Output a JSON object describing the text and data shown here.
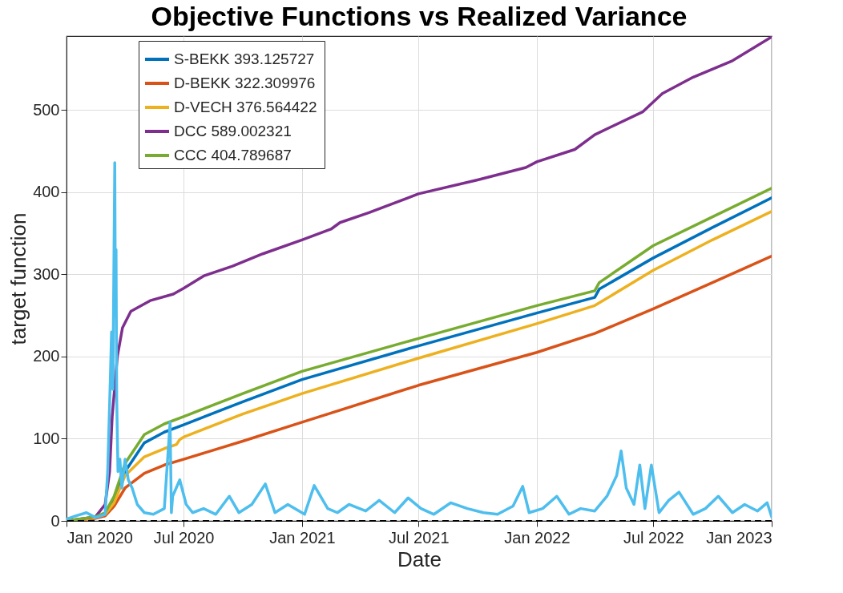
{
  "chart_data": {
    "type": "line",
    "title": "Objective Functions vs Realized Variance",
    "xlabel": "Date",
    "ylabel": "target function",
    "xlim": [
      "2020-01-01",
      "2023-01-01"
    ],
    "xticks": [
      {
        "value": "2020-01-01",
        "label": "Jan 2020"
      },
      {
        "value": "2020-07-01",
        "label": "Jul 2020"
      },
      {
        "value": "2021-01-01",
        "label": "Jan 2021"
      },
      {
        "value": "2021-07-01",
        "label": "Jul 2021"
      },
      {
        "value": "2022-01-01",
        "label": "Jan 2022"
      },
      {
        "value": "2022-07-01",
        "label": "Jul 2022"
      },
      {
        "value": "2023-01-01",
        "label": "Jan 2023"
      }
    ],
    "ylim": [
      0,
      590
    ],
    "yticks": [
      0,
      100,
      200,
      300,
      400,
      500
    ],
    "grid": true,
    "legend": "top left",
    "line_style": "solid",
    "marker": "none",
    "ref_lines": [
      {
        "axis": "y",
        "value": 0,
        "color": "#000000",
        "line_style": "dashed"
      }
    ],
    "series": [
      {
        "name": "S-BEKK 393.125727",
        "color": "#0072bd",
        "x": [
          "2020-01-01",
          "2020-02-15",
          "2020-03-01",
          "2020-03-15",
          "2020-04-01",
          "2020-05-01",
          "2020-06-01",
          "2020-07-01",
          "2020-10-01",
          "2021-01-01",
          "2021-07-01",
          "2022-01-01",
          "2022-04-01",
          "2022-04-08",
          "2022-07-01",
          "2022-10-01",
          "2023-01-01"
        ],
        "values": [
          0,
          4,
          8,
          25,
          60,
          95,
          108,
          117,
          145,
          172,
          213,
          253,
          272,
          282,
          320,
          357,
          393.1
        ]
      },
      {
        "name": "D-BEKK  322.309976",
        "color": "#d95319",
        "x": [
          "2020-01-01",
          "2020-02-15",
          "2020-03-01",
          "2020-03-15",
          "2020-04-01",
          "2020-05-01",
          "2020-06-01",
          "2020-07-01",
          "2020-10-01",
          "2021-01-01",
          "2021-07-01",
          "2022-01-01",
          "2022-04-01",
          "2022-07-01",
          "2022-10-01",
          "2023-01-01"
        ],
        "values": [
          0,
          3,
          6,
          18,
          40,
          58,
          68,
          75,
          97,
          120,
          165,
          205,
          228,
          258,
          290,
          322.3
        ]
      },
      {
        "name": "D-VECH 376.564422",
        "color": "#edb120",
        "x": [
          "2020-01-01",
          "2020-02-15",
          "2020-03-01",
          "2020-03-15",
          "2020-04-01",
          "2020-05-01",
          "2020-06-01",
          "2020-06-20",
          "2020-06-25",
          "2020-07-01",
          "2020-10-01",
          "2021-01-01",
          "2021-07-01",
          "2022-01-01",
          "2022-04-01",
          "2022-07-01",
          "2022-10-01",
          "2023-01-01"
        ],
        "values": [
          0,
          4,
          8,
          22,
          55,
          78,
          88,
          93,
          99,
          102,
          130,
          155,
          198,
          240,
          262,
          305,
          342,
          376.6
        ]
      },
      {
        "name": "DCC 589.002321",
        "color": "#7e2f8e",
        "x": [
          "2020-01-01",
          "2020-02-15",
          "2020-03-01",
          "2020-03-08",
          "2020-03-12",
          "2020-03-20",
          "2020-03-28",
          "2020-04-10",
          "2020-05-10",
          "2020-06-15",
          "2020-07-01",
          "2020-08-01",
          "2020-09-15",
          "2020-11-01",
          "2021-01-01",
          "2021-02-15",
          "2021-03-01",
          "2021-04-15",
          "2021-07-01",
          "2021-10-01",
          "2021-12-15",
          "2022-01-01",
          "2022-03-01",
          "2022-04-01",
          "2022-06-15",
          "2022-07-15",
          "2022-09-01",
          "2022-11-01",
          "2023-01-01"
        ],
        "values": [
          0,
          5,
          20,
          60,
          127,
          200,
          235,
          255,
          268,
          276,
          283,
          298,
          310,
          325,
          342,
          355,
          363,
          375,
          398,
          415,
          430,
          437,
          452,
          470,
          498,
          520,
          540,
          560,
          589
        ]
      },
      {
        "name": "CCC 404.789687",
        "color": "#77ac30",
        "x": [
          "2020-01-01",
          "2020-02-15",
          "2020-03-01",
          "2020-03-15",
          "2020-04-01",
          "2020-05-01",
          "2020-06-01",
          "2020-07-01",
          "2020-10-01",
          "2021-01-01",
          "2021-07-01",
          "2022-01-01",
          "2022-04-01",
          "2022-04-08",
          "2022-07-01",
          "2022-10-01",
          "2023-01-01"
        ],
        "values": [
          0,
          5,
          10,
          30,
          70,
          105,
          118,
          127,
          155,
          182,
          222,
          262,
          280,
          290,
          335,
          370,
          404.8
        ]
      },
      {
        "color": "#4dbeee",
        "x": [
          "2020-01-01",
          "2020-01-15",
          "2020-02-01",
          "2020-02-15",
          "2020-03-01",
          "2020-03-05",
          "2020-03-09",
          "2020-03-11",
          "2020-03-13",
          "2020-03-16",
          "2020-03-17",
          "2020-03-18",
          "2020-03-19",
          "2020-03-21",
          "2020-03-24",
          "2020-03-27",
          "2020-04-01",
          "2020-04-06",
          "2020-04-12",
          "2020-04-20",
          "2020-05-01",
          "2020-05-15",
          "2020-06-01",
          "2020-06-10",
          "2020-06-12",
          "2020-06-14",
          "2020-06-25",
          "2020-07-05",
          "2020-07-15",
          "2020-08-01",
          "2020-08-20",
          "2020-09-10",
          "2020-09-25",
          "2020-10-15",
          "2020-11-05",
          "2020-11-20",
          "2020-12-10",
          "2021-01-05",
          "2021-01-20",
          "2021-02-10",
          "2021-02-25",
          "2021-03-15",
          "2021-04-10",
          "2021-05-01",
          "2021-05-25",
          "2021-06-15",
          "2021-07-05",
          "2021-07-25",
          "2021-08-20",
          "2021-09-15",
          "2021-10-10",
          "2021-11-01",
          "2021-11-25",
          "2021-12-10",
          "2021-12-20",
          "2022-01-10",
          "2022-02-01",
          "2022-02-20",
          "2022-03-10",
          "2022-04-01",
          "2022-04-20",
          "2022-05-05",
          "2022-05-12",
          "2022-05-20",
          "2022-06-01",
          "2022-06-10",
          "2022-06-18",
          "2022-06-28",
          "2022-07-10",
          "2022-07-25",
          "2022-08-10",
          "2022-09-01",
          "2022-09-20",
          "2022-10-10",
          "2022-11-01",
          "2022-11-20",
          "2022-12-10",
          "2022-12-25",
          "2023-01-01"
        ],
        "values": [
          2,
          6,
          10,
          4,
          8,
          60,
          170,
          230,
          160,
          436,
          250,
          330,
          150,
          60,
          75,
          40,
          75,
          50,
          40,
          20,
          10,
          8,
          15,
          120,
          10,
          30,
          50,
          20,
          10,
          15,
          8,
          30,
          10,
          20,
          45,
          10,
          20,
          8,
          43,
          15,
          10,
          20,
          12,
          25,
          10,
          28,
          15,
          8,
          22,
          15,
          10,
          8,
          18,
          42,
          10,
          15,
          30,
          8,
          15,
          12,
          30,
          55,
          85,
          40,
          20,
          68,
          15,
          68,
          10,
          25,
          35,
          8,
          15,
          30,
          10,
          20,
          12,
          22,
          5
        ]
      }
    ]
  }
}
